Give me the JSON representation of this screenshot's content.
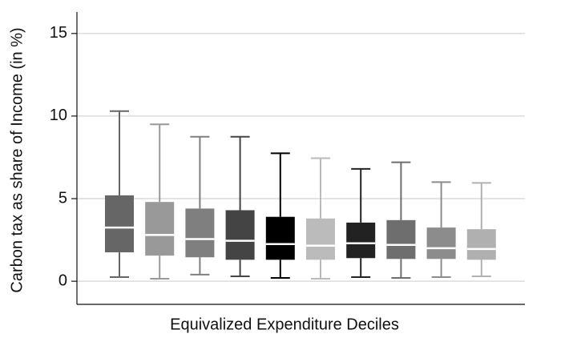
{
  "chart_data": {
    "type": "box",
    "x_label": "Equivalized Expenditure Deciles",
    "y_label": "Carbon tax as share of Income (in %)",
    "categories": [
      null,
      null,
      null,
      null,
      null,
      null,
      null,
      null,
      null,
      null
    ],
    "boxes": [
      {
        "whislo": 0.25,
        "q1": 1.75,
        "med": 3.25,
        "q3": 5.2,
        "whishi": 10.3,
        "color": "#666666"
      },
      {
        "whislo": 0.15,
        "q1": 1.55,
        "med": 2.8,
        "q3": 4.8,
        "whishi": 9.5,
        "color": "#999999"
      },
      {
        "whislo": 0.4,
        "q1": 1.45,
        "med": 2.55,
        "q3": 4.4,
        "whishi": 8.75,
        "color": "#7f7f7f"
      },
      {
        "whislo": 0.3,
        "q1": 1.3,
        "med": 2.45,
        "q3": 4.3,
        "whishi": 8.75,
        "color": "#444444"
      },
      {
        "whislo": 0.2,
        "q1": 1.3,
        "med": 2.25,
        "q3": 3.9,
        "whishi": 7.75,
        "color": "#000000"
      },
      {
        "whislo": 0.15,
        "q1": 1.3,
        "med": 2.15,
        "q3": 3.8,
        "whishi": 7.45,
        "color": "#bbbbbb"
      },
      {
        "whislo": 0.25,
        "q1": 1.4,
        "med": 2.3,
        "q3": 3.55,
        "whishi": 6.8,
        "color": "#222222"
      },
      {
        "whislo": 0.2,
        "q1": 1.35,
        "med": 2.2,
        "q3": 3.7,
        "whishi": 7.2,
        "color": "#6e6e6e"
      },
      {
        "whislo": 0.25,
        "q1": 1.35,
        "med": 2.0,
        "q3": 3.25,
        "whishi": 6.0,
        "color": "#8c8c8c"
      },
      {
        "whislo": 0.3,
        "q1": 1.3,
        "med": 1.95,
        "q3": 3.15,
        "whishi": 5.95,
        "color": "#b0b0b0"
      }
    ],
    "ylim": [
      -1.4,
      16.3
    ],
    "yticks": [
      0,
      5,
      10,
      15
    ],
    "grid": true
  }
}
